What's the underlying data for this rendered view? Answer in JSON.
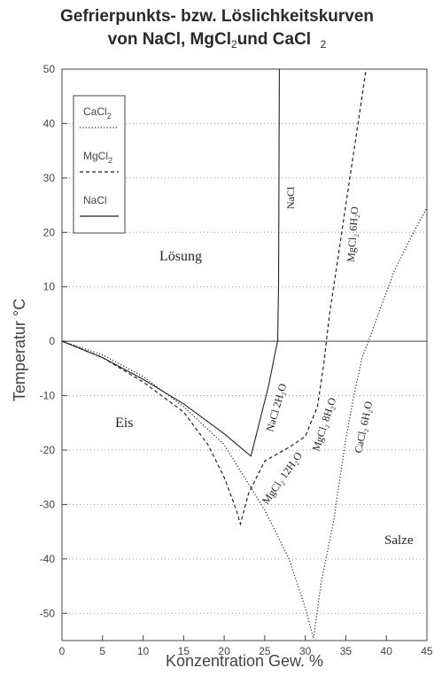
{
  "chart_data": {
    "type": "line",
    "title_line1": "Gefrierpunkts- bzw. Löslichkeitskurven",
    "title_line2_prefix": "von NaCl, MgCl",
    "title_line2_sub1": "2",
    "title_line2_mid": "und CaCl",
    "title_line2_sub2": "2",
    "xlabel": "Konzentration Gew. %",
    "ylabel": "Temperatur °C",
    "xlim": [
      0,
      45
    ],
    "ylim": [
      -55,
      50
    ],
    "xticks": [
      0,
      5,
      10,
      15,
      20,
      25,
      30,
      35,
      40,
      45
    ],
    "yticks": [
      50,
      40,
      30,
      20,
      10,
      0,
      -10,
      -20,
      -30,
      -40,
      -50
    ],
    "grid": "horizontal-dotted",
    "legend": {
      "placement": "top-left",
      "entries": [
        {
          "label": "CaCl",
          "sub": "2",
          "style": "dotted"
        },
        {
          "label": "MgCl",
          "sub": "2",
          "style": "dashed"
        },
        {
          "label": "NaCl",
          "sub": "",
          "style": "solid"
        }
      ]
    },
    "series": [
      {
        "name": "NaCl",
        "style": "solid",
        "points": [
          [
            0,
            0
          ],
          [
            5,
            -3
          ],
          [
            10,
            -7
          ],
          [
            15,
            -11.5
          ],
          [
            20,
            -17
          ],
          [
            23.3,
            -21.1
          ],
          [
            24.5,
            -14
          ],
          [
            25.5,
            -8
          ],
          [
            26.3,
            -2
          ],
          [
            26.6,
            0
          ],
          [
            26.7,
            10
          ],
          [
            26.8,
            50
          ]
        ]
      },
      {
        "name": "MgCl2",
        "style": "dashed",
        "points": [
          [
            0,
            0
          ],
          [
            5,
            -3
          ],
          [
            10,
            -7.5
          ],
          [
            15,
            -13
          ],
          [
            18,
            -19
          ],
          [
            20,
            -25
          ],
          [
            21.5,
            -31
          ],
          [
            22,
            -33.6
          ],
          [
            23,
            -28
          ],
          [
            25,
            -22
          ],
          [
            28,
            -19.5
          ],
          [
            30,
            -17.5
          ],
          [
            31.5,
            -12
          ],
          [
            32.3,
            -4
          ],
          [
            32.6,
            0
          ],
          [
            33,
            5
          ],
          [
            34,
            15
          ],
          [
            35,
            25
          ],
          [
            36.5,
            40
          ],
          [
            37.5,
            50
          ]
        ]
      },
      {
        "name": "CaCl2",
        "style": "dotted",
        "points": [
          [
            0,
            0
          ],
          [
            5,
            -2.5
          ],
          [
            10,
            -6.5
          ],
          [
            15,
            -12
          ],
          [
            20,
            -19
          ],
          [
            25,
            -31
          ],
          [
            28,
            -40
          ],
          [
            30,
            -49
          ],
          [
            31,
            -54.6
          ],
          [
            32,
            -44
          ],
          [
            33.5,
            -33
          ],
          [
            35,
            -18
          ],
          [
            36,
            -10
          ],
          [
            37,
            -3
          ],
          [
            37.8,
            0
          ],
          [
            39,
            5
          ],
          [
            41,
            13
          ],
          [
            43,
            19
          ],
          [
            45,
            24.5
          ]
        ]
      }
    ],
    "annotations": {
      "solution": "Lösung",
      "ice": "Eis",
      "salts": "Salze",
      "nacl_line": "NaCl",
      "nacl_hydrate": "NaCl 2H₂O",
      "mgcl_6": "MgCl₂ 6H₂O",
      "mgcl_8": "MgCl₂ 8H₂O",
      "mgcl_12": "MgCl₂ 12H₂O",
      "cacl_6": "CaCl₂ 6H₂O"
    }
  }
}
